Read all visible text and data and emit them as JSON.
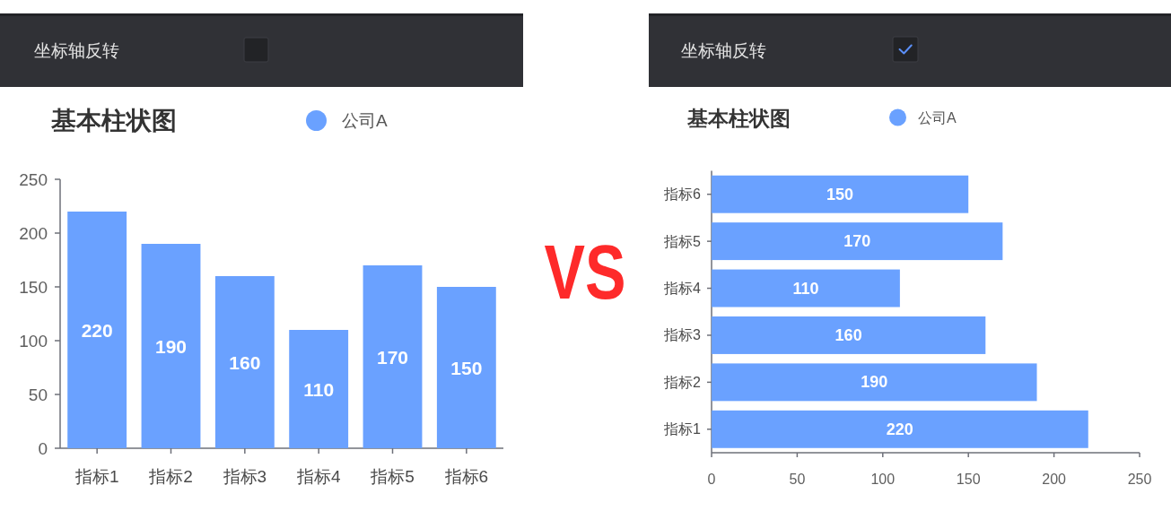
{
  "chart_data": [
    {
      "type": "bar",
      "title": "基本柱状图",
      "annotations": [
        "坐标轴反转"
      ],
      "categories": [
        "指标1",
        "指标2",
        "指标3",
        "指标4",
        "指标5",
        "指标6"
      ],
      "series": [
        {
          "name": "公司A",
          "color": "#6aa1ff",
          "values": [
            220,
            190,
            160,
            110,
            170,
            150
          ]
        }
      ],
      "ylim": [
        0,
        250
      ],
      "yticks": [
        0,
        50,
        100,
        150,
        200,
        250
      ],
      "data_labels": true,
      "legend": "top"
    },
    {
      "type": "other",
      "title": "VS"
    },
    {
      "type": "bar",
      "orientation": "horizontal",
      "title": "基本柱状图",
      "annotations": [
        "坐标轴反转"
      ],
      "categories": [
        "指标6",
        "指标5",
        "指标4",
        "指标3",
        "指标2",
        "指标1"
      ],
      "series": [
        {
          "name": "公司A",
          "color": "#6aa1ff",
          "values": [
            150,
            170,
            110,
            160,
            190,
            220
          ]
        }
      ],
      "xlim": [
        0,
        250
      ],
      "xticks": [
        0,
        50,
        100,
        150,
        200,
        250
      ],
      "data_labels": true,
      "legend": "top"
    }
  ]
}
